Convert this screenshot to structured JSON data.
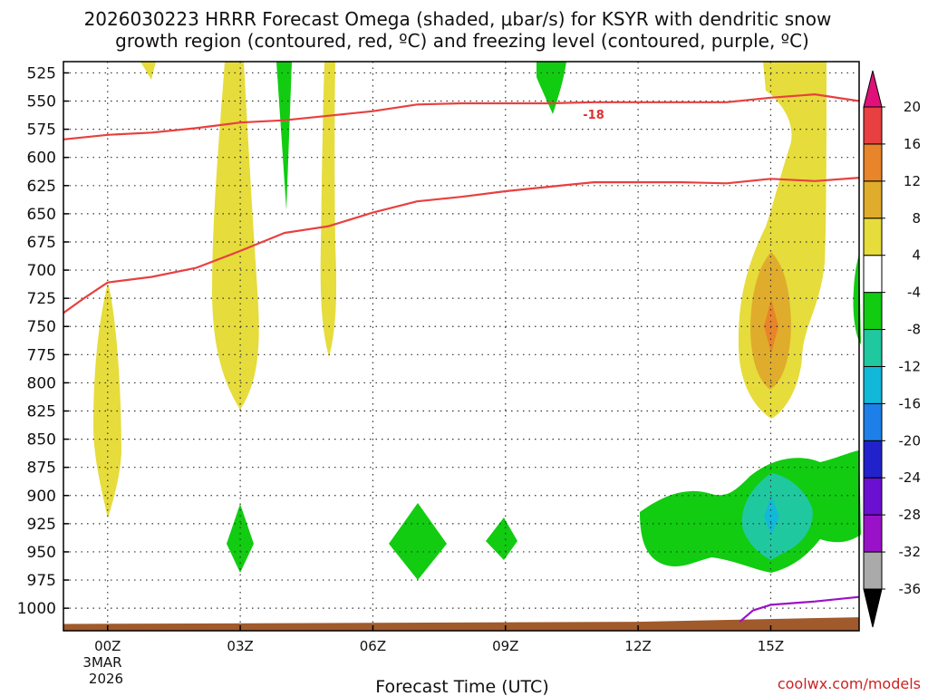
{
  "chart_data": {
    "type": "heatmap",
    "title_line1": "2026030223 HRRR Forecast Omega (shaded, μbar/s) for KSYR with dendritic snow",
    "title_line2": "growth region (contoured, red, ºC) and freezing level (contoured, purple, ºC)",
    "xlabel": "Forecast Time (UTC)",
    "x_ticks": [
      {
        "hour": 0,
        "label": "00Z"
      },
      {
        "hour": 3,
        "label": "03Z"
      },
      {
        "hour": 6,
        "label": "06Z"
      },
      {
        "hour": 9,
        "label": "09Z"
      },
      {
        "hour": 12,
        "label": "12Z"
      },
      {
        "hour": 15,
        "label": "15Z"
      }
    ],
    "x_date_label_line1": "3MAR",
    "x_date_label_line2": "2026",
    "xlim": [
      -1,
      17
    ],
    "y_ticks": [
      525,
      550,
      575,
      600,
      625,
      650,
      675,
      700,
      725,
      750,
      775,
      800,
      825,
      850,
      875,
      900,
      925,
      950,
      975,
      1000
    ],
    "ylim": [
      515,
      1020
    ],
    "colorbar": {
      "levels": [
        -36,
        -32,
        -28,
        -24,
        -20,
        -16,
        -12,
        -8,
        -4,
        4,
        8,
        12,
        16,
        20
      ],
      "colors": [
        "#aaaaaa",
        "#9a12c8",
        "#6a10d0",
        "#2222cc",
        "#1e7fe8",
        "#12b8d8",
        "#20c8a0",
        "#11cc11",
        "#ffffff",
        "#e6dc3c",
        "#e0ac2c",
        "#e8842a",
        "#e84040"
      ],
      "under_color": "#000000",
      "over_color": "#e0107a"
    },
    "contour_label": "-18",
    "series": [
      {
        "name": "dendritic-upper (-18 °C)",
        "color": "#e84040",
        "x": [
          -1,
          0,
          1,
          2,
          3,
          4,
          5,
          6,
          7,
          8,
          9,
          10,
          11,
          12,
          13,
          14,
          15,
          16,
          17
        ],
        "y": [
          584,
          580,
          578,
          574,
          569,
          567,
          563,
          559,
          553,
          552,
          552,
          552,
          551,
          551,
          551,
          551,
          547,
          544,
          550
        ]
      },
      {
        "name": "dendritic-lower (-12 °C)",
        "color": "#e84040",
        "x": [
          -1,
          -0.5,
          0,
          1,
          2,
          3,
          4,
          5,
          6,
          7,
          8,
          9,
          10,
          11,
          12,
          13,
          14,
          15,
          16,
          17
        ],
        "y": [
          738,
          724,
          711,
          706,
          698,
          683,
          667,
          661,
          649,
          639,
          635,
          630,
          626,
          622,
          622,
          622,
          623,
          619,
          621,
          618
        ]
      },
      {
        "name": "freezing level (0 °C)",
        "color": "#9a12c8",
        "x": [
          14.3,
          14.6,
          15,
          16,
          17
        ],
        "y": [
          1012,
          1002,
          997,
          994,
          990
        ]
      }
    ],
    "terrain_pressure": [
      [
        -1,
        1014
      ],
      [
        6,
        1013
      ],
      [
        12,
        1012
      ],
      [
        17,
        1008
      ]
    ]
  },
  "credit": "coolwx.com/models"
}
